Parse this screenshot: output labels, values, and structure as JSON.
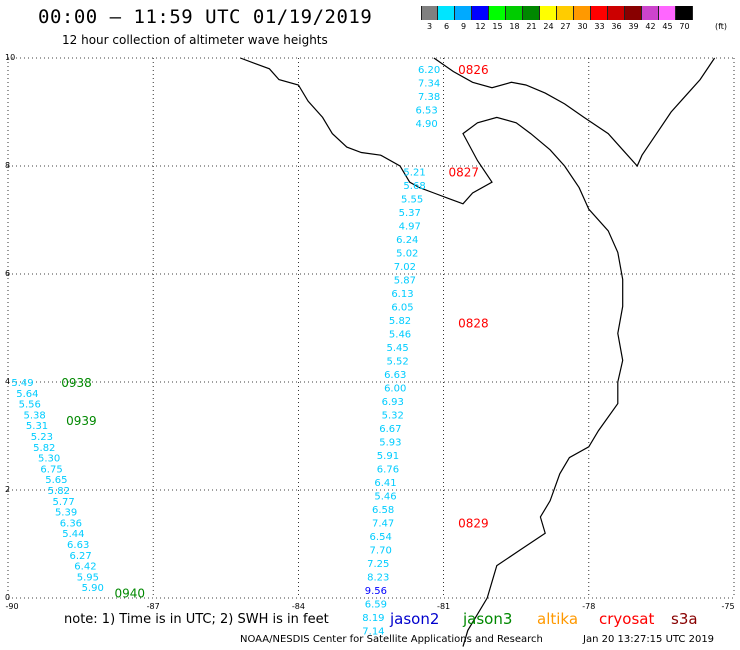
{
  "header": {
    "title": "00:00 – 11:59 UTC 01/19/2019",
    "subtitle": "12 hour collection of altimeter wave heights"
  },
  "colorbar": {
    "labels": [
      "3",
      "6",
      "9",
      "12",
      "15",
      "18",
      "21",
      "24",
      "27",
      "30",
      "33",
      "36",
      "39",
      "42",
      "45",
      "70"
    ],
    "colors": [
      "#808080",
      "#00e5ff",
      "#00aaff",
      "#0000ff",
      "#00ff00",
      "#00cc00",
      "#008800",
      "#ffff00",
      "#ffcc00",
      "#ff9900",
      "#ff0000",
      "#cc0000",
      "#880000",
      "#cc44cc",
      "#ff66ff",
      "#000000"
    ],
    "unit": "(ft)"
  },
  "chart_data": {
    "type": "scatter",
    "xlim": [
      -90,
      -75
    ],
    "ylim": [
      0,
      10
    ],
    "x_ticks": [
      "-90",
      "-87",
      "-84",
      "-81",
      "-78",
      "-75"
    ],
    "y_ticks": [
      "0",
      "2",
      "4",
      "6",
      "8",
      "10"
    ],
    "grid": true,
    "tracks": [
      {
        "time_labels": [
          {
            "text": "0826",
            "lon": -80.7,
            "lat": 9.8
          },
          {
            "text": "0827",
            "lon": -80.9,
            "lat": 7.9
          },
          {
            "text": "0828",
            "lon": -80.7,
            "lat": 5.1
          },
          {
            "text": "0829",
            "lon": -80.7,
            "lat": 1.4
          }
        ],
        "label_color": "#ff0000",
        "points": [
          {
            "lon": -81.3,
            "lat": 9.8,
            "value": "6.20",
            "color": "#00ccff"
          },
          {
            "lon": -81.3,
            "lat": 9.55,
            "value": "7.34",
            "color": "#00ccff"
          },
          {
            "lon": -81.3,
            "lat": 9.3,
            "value": "7.38",
            "color": "#00ccff"
          },
          {
            "lon": -81.35,
            "lat": 9.05,
            "value": "6.53",
            "color": "#00ccff"
          },
          {
            "lon": -81.35,
            "lat": 8.8,
            "value": "4.90",
            "color": "#00ccff"
          },
          {
            "lon": -81.6,
            "lat": 7.9,
            "value": "5.21",
            "color": "#00ccff"
          },
          {
            "lon": -81.6,
            "lat": 7.65,
            "value": "5.68",
            "color": "#00ccff"
          },
          {
            "lon": -81.65,
            "lat": 7.4,
            "value": "5.55",
            "color": "#00ccff"
          },
          {
            "lon": -81.7,
            "lat": 7.15,
            "value": "5.37",
            "color": "#00ccff"
          },
          {
            "lon": -81.7,
            "lat": 6.9,
            "value": "4.97",
            "color": "#00ccff"
          },
          {
            "lon": -81.75,
            "lat": 6.65,
            "value": "6.24",
            "color": "#00ccff"
          },
          {
            "lon": -81.75,
            "lat": 6.4,
            "value": "5.02",
            "color": "#00ccff"
          },
          {
            "lon": -81.8,
            "lat": 6.15,
            "value": "7.02",
            "color": "#00ccff"
          },
          {
            "lon": -81.8,
            "lat": 5.9,
            "value": "5.87",
            "color": "#00ccff"
          },
          {
            "lon": -81.85,
            "lat": 5.65,
            "value": "6.13",
            "color": "#00ccff"
          },
          {
            "lon": -81.85,
            "lat": 5.4,
            "value": "6.05",
            "color": "#00ccff"
          },
          {
            "lon": -81.9,
            "lat": 5.15,
            "value": "5.82",
            "color": "#00ccff"
          },
          {
            "lon": -81.9,
            "lat": 4.9,
            "value": "5.46",
            "color": "#00ccff"
          },
          {
            "lon": -81.95,
            "lat": 4.65,
            "value": "5.45",
            "color": "#00ccff"
          },
          {
            "lon": -81.95,
            "lat": 4.4,
            "value": "5.52",
            "color": "#00ccff"
          },
          {
            "lon": -82.0,
            "lat": 4.15,
            "value": "6.63",
            "color": "#00ccff"
          },
          {
            "lon": -82.0,
            "lat": 3.9,
            "value": "6.00",
            "color": "#00ccff"
          },
          {
            "lon": -82.05,
            "lat": 3.65,
            "value": "6.93",
            "color": "#00ccff"
          },
          {
            "lon": -82.05,
            "lat": 3.4,
            "value": "5.32",
            "color": "#00ccff"
          },
          {
            "lon": -82.1,
            "lat": 3.15,
            "value": "6.67",
            "color": "#00ccff"
          },
          {
            "lon": -82.1,
            "lat": 2.9,
            "value": "5.93",
            "color": "#00ccff"
          },
          {
            "lon": -82.15,
            "lat": 2.65,
            "value": "5.91",
            "color": "#00ccff"
          },
          {
            "lon": -82.15,
            "lat": 2.4,
            "value": "6.76",
            "color": "#00ccff"
          },
          {
            "lon": -82.2,
            "lat": 2.15,
            "value": "6.41",
            "color": "#00ccff"
          },
          {
            "lon": -82.2,
            "lat": 1.9,
            "value": "5.46",
            "color": "#00ccff"
          },
          {
            "lon": -82.25,
            "lat": 1.65,
            "value": "6.58",
            "color": "#00ccff"
          },
          {
            "lon": -82.25,
            "lat": 1.4,
            "value": "7.47",
            "color": "#00ccff"
          },
          {
            "lon": -82.3,
            "lat": 1.15,
            "value": "6.54",
            "color": "#00ccff"
          },
          {
            "lon": -82.3,
            "lat": 0.9,
            "value": "7.70",
            "color": "#00ccff"
          },
          {
            "lon": -82.35,
            "lat": 0.65,
            "value": "7.25",
            "color": "#00ccff"
          },
          {
            "lon": -82.35,
            "lat": 0.4,
            "value": "8.23",
            "color": "#00ccff"
          },
          {
            "lon": -82.4,
            "lat": 0.15,
            "value": "9.56",
            "color": "#0000ff"
          },
          {
            "lon": -82.4,
            "lat": -0.1,
            "value": "6.59",
            "color": "#00ccff"
          },
          {
            "lon": -82.45,
            "lat": -0.35,
            "value": "8.19",
            "color": "#00ccff"
          },
          {
            "lon": -82.45,
            "lat": -0.6,
            "value": "7.14",
            "color": "#00ccff"
          }
        ]
      },
      {
        "time_labels": [
          {
            "text": "0938",
            "lon": -88.9,
            "lat": 4.0
          },
          {
            "text": "0939",
            "lon": -88.8,
            "lat": 3.3
          },
          {
            "text": "0940",
            "lon": -87.8,
            "lat": 0.1
          }
        ],
        "label_color": "#008800",
        "points": [
          {
            "lon": -89.7,
            "lat": 4.0,
            "value": "5.49",
            "color": "#00ccff"
          },
          {
            "lon": -89.6,
            "lat": 3.8,
            "value": "5.64",
            "color": "#00ccff"
          },
          {
            "lon": -89.55,
            "lat": 3.6,
            "value": "5.56",
            "color": "#00ccff"
          },
          {
            "lon": -89.45,
            "lat": 3.4,
            "value": "5.38",
            "color": "#00ccff"
          },
          {
            "lon": -89.4,
            "lat": 3.2,
            "value": "5.31",
            "color": "#00ccff"
          },
          {
            "lon": -89.3,
            "lat": 3.0,
            "value": "5.23",
            "color": "#00ccff"
          },
          {
            "lon": -89.25,
            "lat": 2.8,
            "value": "5.82",
            "color": "#00ccff"
          },
          {
            "lon": -89.15,
            "lat": 2.6,
            "value": "5.30",
            "color": "#00ccff"
          },
          {
            "lon": -89.1,
            "lat": 2.4,
            "value": "6.75",
            "color": "#00ccff"
          },
          {
            "lon": -89.0,
            "lat": 2.2,
            "value": "5.65",
            "color": "#00ccff"
          },
          {
            "lon": -88.95,
            "lat": 2.0,
            "value": "5.82",
            "color": "#00ccff"
          },
          {
            "lon": -88.85,
            "lat": 1.8,
            "value": "5.77",
            "color": "#00ccff"
          },
          {
            "lon": -88.8,
            "lat": 1.6,
            "value": "5.39",
            "color": "#00ccff"
          },
          {
            "lon": -88.7,
            "lat": 1.4,
            "value": "6.36",
            "color": "#00ccff"
          },
          {
            "lon": -88.65,
            "lat": 1.2,
            "value": "5.44",
            "color": "#00ccff"
          },
          {
            "lon": -88.55,
            "lat": 1.0,
            "value": "6.63",
            "color": "#00ccff"
          },
          {
            "lon": -88.5,
            "lat": 0.8,
            "value": "6.27",
            "color": "#00ccff"
          },
          {
            "lon": -88.4,
            "lat": 0.6,
            "value": "6.42",
            "color": "#00ccff"
          },
          {
            "lon": -88.35,
            "lat": 0.4,
            "value": "5.95",
            "color": "#00ccff"
          },
          {
            "lon": -88.25,
            "lat": 0.2,
            "value": "5.90",
            "color": "#00ccff"
          }
        ]
      }
    ],
    "coastline": [
      [
        [
          -85.2,
          10.0
        ],
        [
          -84.9,
          9.9
        ],
        [
          -84.6,
          9.8
        ],
        [
          -84.4,
          9.6
        ],
        [
          -84.0,
          9.5
        ],
        [
          -83.8,
          9.2
        ],
        [
          -83.5,
          8.9
        ],
        [
          -83.3,
          8.6
        ],
        [
          -83.0,
          8.35
        ],
        [
          -82.7,
          8.25
        ],
        [
          -82.3,
          8.2
        ],
        [
          -81.9,
          8.0
        ],
        [
          -81.7,
          7.7
        ],
        [
          -81.5,
          7.6
        ],
        [
          -81.2,
          7.5
        ],
        [
          -80.9,
          7.4
        ],
        [
          -80.6,
          7.3
        ],
        [
          -80.4,
          7.5
        ],
        [
          -80.0,
          7.7
        ],
        [
          -80.3,
          8.1
        ],
        [
          -80.6,
          8.6
        ],
        [
          -80.3,
          8.8
        ],
        [
          -79.9,
          8.9
        ],
        [
          -79.5,
          8.8
        ],
        [
          -79.2,
          8.6
        ],
        [
          -78.8,
          8.3
        ],
        [
          -78.5,
          8.0
        ],
        [
          -78.2,
          7.6
        ],
        [
          -78.0,
          7.2
        ],
        [
          -77.6,
          6.8
        ],
        [
          -77.4,
          6.4
        ],
        [
          -77.3,
          5.9
        ],
        [
          -77.3,
          5.4
        ],
        [
          -77.4,
          4.9
        ],
        [
          -77.3,
          4.4
        ],
        [
          -77.4,
          4.0
        ],
        [
          -77.4,
          3.6
        ],
        [
          -77.8,
          3.1
        ],
        [
          -78.0,
          2.8
        ],
        [
          -78.4,
          2.6
        ],
        [
          -78.6,
          2.3
        ],
        [
          -78.8,
          1.8
        ],
        [
          -79.0,
          1.5
        ],
        [
          -78.9,
          1.2
        ],
        [
          -79.4,
          0.9
        ],
        [
          -79.9,
          0.6
        ],
        [
          -80.0,
          0.3
        ],
        [
          -80.1,
          0.0
        ],
        [
          -80.3,
          -0.3
        ],
        [
          -80.5,
          -0.6
        ],
        [
          -80.6,
          -0.9
        ]
      ],
      [
        [
          -81.2,
          10.0
        ],
        [
          -80.8,
          9.75
        ],
        [
          -80.4,
          9.55
        ],
        [
          -80.0,
          9.45
        ],
        [
          -79.6,
          9.55
        ],
        [
          -79.3,
          9.5
        ],
        [
          -78.9,
          9.35
        ],
        [
          -78.5,
          9.15
        ],
        [
          -78.1,
          8.9
        ],
        [
          -77.6,
          8.6
        ],
        [
          -77.3,
          8.3
        ],
        [
          -77.0,
          8.0
        ],
        [
          -76.9,
          8.2
        ],
        [
          -76.6,
          8.6
        ],
        [
          -76.3,
          9.0
        ],
        [
          -76.0,
          9.3
        ],
        [
          -75.7,
          9.6
        ],
        [
          -75.4,
          10.0
        ]
      ]
    ]
  },
  "footer": {
    "note": "note: 1) Time is in UTC; 2) SWH is in feet",
    "satellites": [
      {
        "name": "jason2",
        "color": "#0000cc"
      },
      {
        "name": "jason3",
        "color": "#008800"
      },
      {
        "name": "altika",
        "color": "#ff9900"
      },
      {
        "name": "cryosat",
        "color": "#ff0000"
      },
      {
        "name": "s3a",
        "color": "#880000"
      }
    ],
    "credit": "NOAA/NESDIS Center for Satellite Applications and Research",
    "timestamp": "Jan 20 13:27:15 UTC 2019"
  }
}
